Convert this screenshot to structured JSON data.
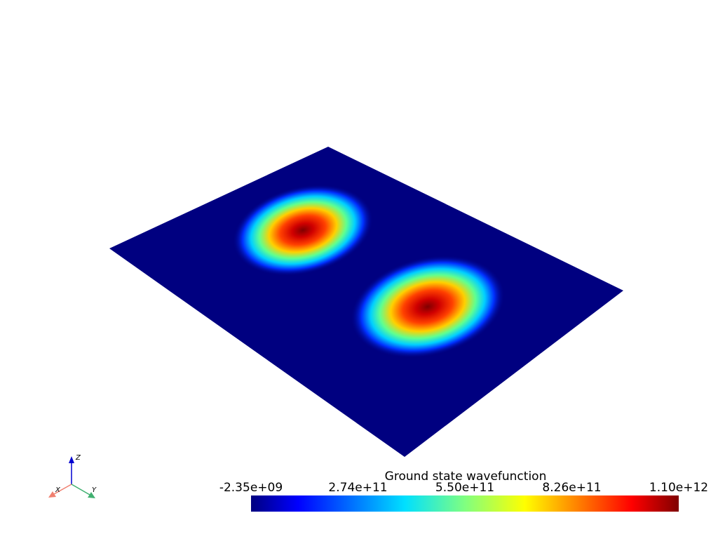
{
  "scalar_bar": {
    "title": "Ground state wavefunction",
    "tick_labels": [
      "-2.35e+09",
      "2.74e+11",
      "5.50e+11",
      "8.26e+11",
      "1.10e+12"
    ]
  },
  "axes_widget": {
    "x_label": "X",
    "y_label": "Y",
    "z_label": "Z"
  }
}
